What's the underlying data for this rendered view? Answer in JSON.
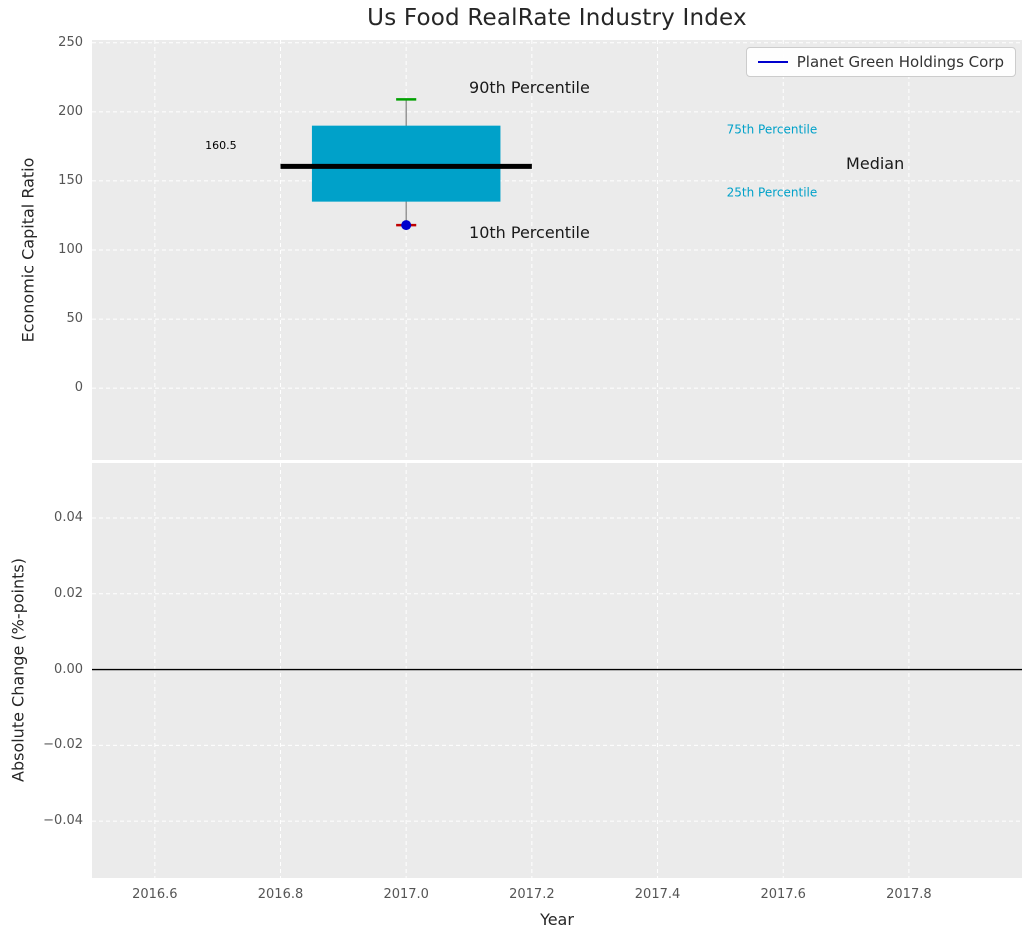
{
  "title": "Us Food RealRate Industry Index",
  "legend": {
    "label": "Planet Green Holdings Corp",
    "line_color": "#0000cd"
  },
  "chart_data": [
    {
      "type": "boxplot",
      "title": "Us Food RealRate Industry Index",
      "xlabel": "",
      "ylabel": "Economic Capital Ratio",
      "xlim": [
        2016.5,
        2017.98
      ],
      "ylim": [
        -52,
        252
      ],
      "grid": true,
      "xticks": [
        {
          "v": 2016.6,
          "label": "2016.6"
        },
        {
          "v": 2016.8,
          "label": "2016.8"
        },
        {
          "v": 2017.0,
          "label": "2017.0"
        },
        {
          "v": 2017.2,
          "label": "2017.2"
        },
        {
          "v": 2017.4,
          "label": "2017.4"
        },
        {
          "v": 2017.6,
          "label": "2017.6"
        },
        {
          "v": 2017.8,
          "label": "2017.8"
        }
      ],
      "yticks": [
        {
          "v": 250,
          "label": "250"
        },
        {
          "v": 200,
          "label": "200"
        },
        {
          "v": 150,
          "label": "150"
        },
        {
          "v": 100,
          "label": "100"
        },
        {
          "v": 50,
          "label": "50"
        },
        {
          "v": 0,
          "label": "0"
        }
      ],
      "colors": {
        "box_fill": "#00a1c9",
        "median_line": "#000000",
        "whisker": "#7f7f7f",
        "cap_top": "#00a000",
        "cap_bottom": "#c00000"
      },
      "box": {
        "x": 2017.0,
        "p10": 118,
        "p25": 135,
        "median": 160.5,
        "p75": 190,
        "p90": 209,
        "box_width": 0.3,
        "median_width": 0.4,
        "cap_width": 0.032
      },
      "company_point": {
        "x": 2017.0,
        "y": 118,
        "name": "Planet Green Holdings Corp"
      },
      "annotations": [
        {
          "text": "160.5",
          "x": 2016.68,
          "y": 175,
          "size": 11,
          "color": "#000000"
        },
        {
          "text": "90th Percentile",
          "x": 2017.1,
          "y": 217,
          "size": 16,
          "color": "#1a1a1a"
        },
        {
          "text": "75th Percentile",
          "x": 2017.51,
          "y": 187,
          "size": 12,
          "color": "#00a1c9"
        },
        {
          "text": "Median",
          "x": 2017.7,
          "y": 162,
          "size": 16,
          "color": "#1a1a1a"
        },
        {
          "text": "25th Percentile",
          "x": 2017.51,
          "y": 141,
          "size": 12,
          "color": "#00a1c9"
        },
        {
          "text": "10th Percentile",
          "x": 2017.1,
          "y": 112,
          "size": 16,
          "color": "#1a1a1a"
        }
      ],
      "legend_entries": [
        {
          "label": "Planet Green Holdings Corp",
          "color": "#0000cd",
          "marker": "line"
        }
      ]
    },
    {
      "type": "line",
      "title": "",
      "xlabel": "Year",
      "ylabel": "Absolute Change (%-points)",
      "xlim": [
        2016.5,
        2017.98
      ],
      "ylim": [
        -0.055,
        0.0545
      ],
      "grid": true,
      "xticks": [
        {
          "v": 2016.6,
          "label": "2016.6"
        },
        {
          "v": 2016.8,
          "label": "2016.8"
        },
        {
          "v": 2017.0,
          "label": "2017.0"
        },
        {
          "v": 2017.2,
          "label": "2017.2"
        },
        {
          "v": 2017.4,
          "label": "2017.4"
        },
        {
          "v": 2017.6,
          "label": "2017.6"
        },
        {
          "v": 2017.8,
          "label": "2017.8"
        }
      ],
      "yticks": [
        {
          "v": 0.04,
          "label": "0.04"
        },
        {
          "v": 0.02,
          "label": "0.02"
        },
        {
          "v": 0.0,
          "label": "0.00"
        },
        {
          "v": -0.02,
          "label": "−0.02"
        },
        {
          "v": -0.04,
          "label": "−0.04"
        }
      ],
      "zero_line_y": 0.0,
      "series": []
    }
  ]
}
